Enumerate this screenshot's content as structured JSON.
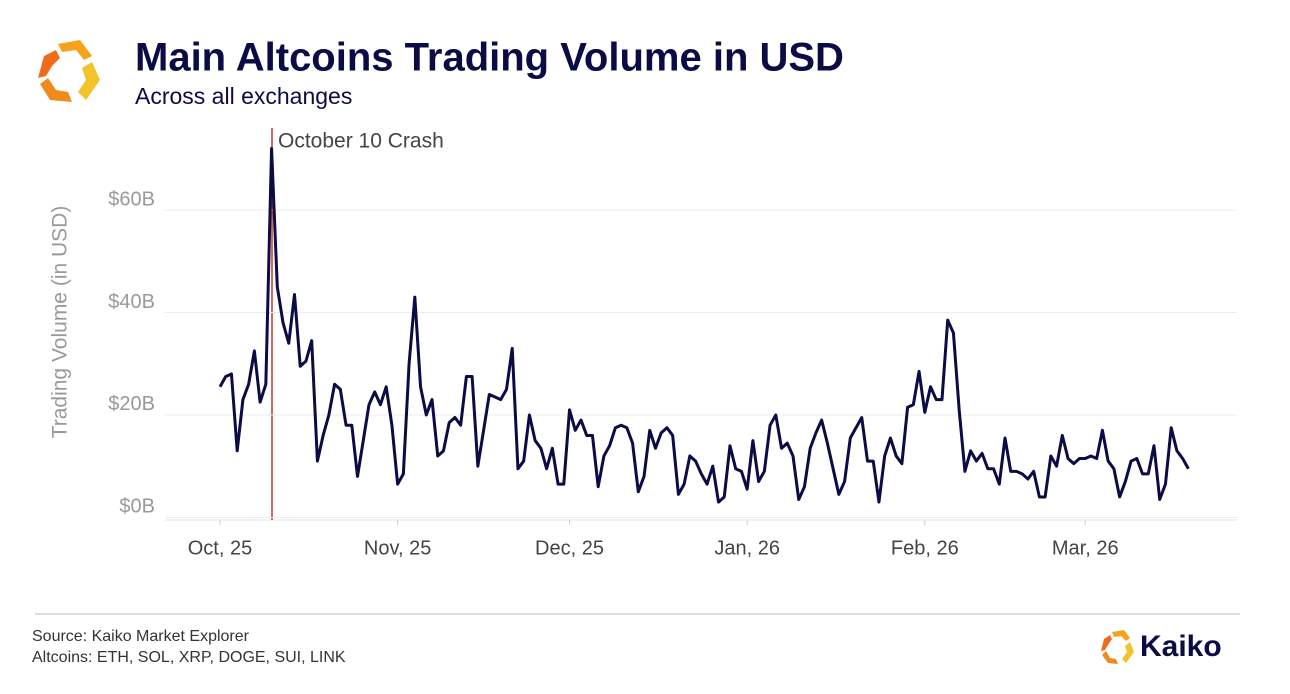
{
  "chart_data": {
    "type": "line",
    "title": "Main Altcoins Trading Volume in USD",
    "subtitle": "Across all exchanges",
    "y_label": "Trading Volume (in USD)",
    "annotation": "October 10 Crash",
    "source": "Source: Kaiko Market Explorer",
    "note": "Altcoins: ETH, SOL, XRP, DOGE, SUI, LINK",
    "brand": "Kaiko",
    "color": "#0b0b45",
    "grid": true,
    "ylim": [
      -0.5,
      76
    ],
    "yticks": [
      {
        "value": 0,
        "label": "$0B"
      },
      {
        "value": 20,
        "label": "$20B"
      },
      {
        "value": 40,
        "label": "$40B"
      },
      {
        "value": 60,
        "label": "$60B"
      }
    ],
    "categories": [
      "Oct, 25",
      null,
      null,
      null,
      null,
      null,
      null,
      null,
      null,
      null,
      null,
      null,
      null,
      null,
      null,
      null,
      null,
      null,
      null,
      null,
      null,
      null,
      null,
      null,
      null,
      null,
      null,
      null,
      null,
      null,
      null,
      "Nov, 25",
      null,
      null,
      null,
      null,
      null,
      null,
      null,
      null,
      null,
      null,
      null,
      null,
      null,
      null,
      null,
      null,
      null,
      null,
      null,
      null,
      null,
      null,
      null,
      null,
      null,
      null,
      null,
      null,
      null,
      "Dec, 25",
      null,
      null,
      null,
      null,
      null,
      null,
      null,
      null,
      null,
      null,
      null,
      null,
      null,
      null,
      null,
      null,
      null,
      null,
      null,
      null,
      null,
      null,
      null,
      null,
      null,
      null,
      null,
      null,
      null,
      null,
      "Jan, 26",
      null,
      null,
      null,
      null,
      null,
      null,
      null,
      null,
      null,
      null,
      null,
      null,
      null,
      null,
      null,
      null,
      null,
      null,
      null,
      null,
      null,
      null,
      null,
      null,
      null,
      null,
      null,
      null,
      null,
      null,
      "Feb, 26",
      null,
      null,
      null,
      null,
      null,
      null,
      null,
      null,
      null,
      null,
      null,
      null,
      null,
      null,
      null,
      null,
      null,
      null,
      null,
      null,
      null,
      null,
      null,
      null,
      null,
      null,
      null,
      "Mar, 26",
      null,
      null,
      null,
      null,
      null,
      null,
      null,
      null,
      null,
      null,
      null,
      null,
      null,
      null,
      null,
      null,
      null,
      null
    ],
    "values": [
      25.5,
      27.5,
      28,
      13,
      23,
      26,
      32.5,
      22.5,
      26,
      72,
      45,
      38,
      34,
      43.5,
      29.5,
      30.5,
      34.5,
      11,
      16,
      20,
      26,
      25,
      18,
      18,
      8,
      15,
      22,
      24.5,
      22,
      25.5,
      18,
      6.5,
      8.5,
      30,
      43,
      25.5,
      20,
      23,
      12,
      13,
      18.5,
      19.5,
      18,
      27.5,
      27.5,
      10,
      17,
      24,
      23.5,
      23,
      25,
      33,
      9.5,
      11,
      20,
      15,
      13.5,
      9.5,
      13.5,
      6.5,
      6.5,
      21,
      17,
      19,
      16,
      16,
      6,
      12,
      14,
      17.5,
      18,
      17.5,
      14.5,
      5,
      8,
      17,
      13.5,
      16.5,
      17.5,
      16,
      4.5,
      6.5,
      12,
      11,
      8.5,
      6.5,
      10,
      3,
      4,
      14,
      9.5,
      9,
      5.5,
      15,
      7,
      9,
      18,
      20,
      13.5,
      14.5,
      12,
      3.5,
      6,
      13.5,
      16.5,
      19,
      14.5,
      9.5,
      4.5,
      7,
      15.5,
      17.5,
      19.5,
      11,
      11,
      3,
      12,
      15.5,
      12,
      10.5,
      21.5,
      22,
      28.5,
      20.5,
      25.5,
      23,
      23,
      38.5,
      36,
      21,
      9,
      13,
      11,
      12.5,
      9.5,
      9.5,
      6.5,
      15.5,
      9,
      9,
      8.5,
      7.5,
      9,
      4,
      4,
      12,
      10,
      16,
      11.5,
      10.5,
      11.5,
      11.5,
      12,
      11.5,
      17,
      11,
      9.5,
      4,
      7,
      11,
      11.5,
      8.5,
      8.5,
      14,
      3.5,
      6.5,
      17.5,
      13,
      11.5,
      9.5
    ]
  }
}
